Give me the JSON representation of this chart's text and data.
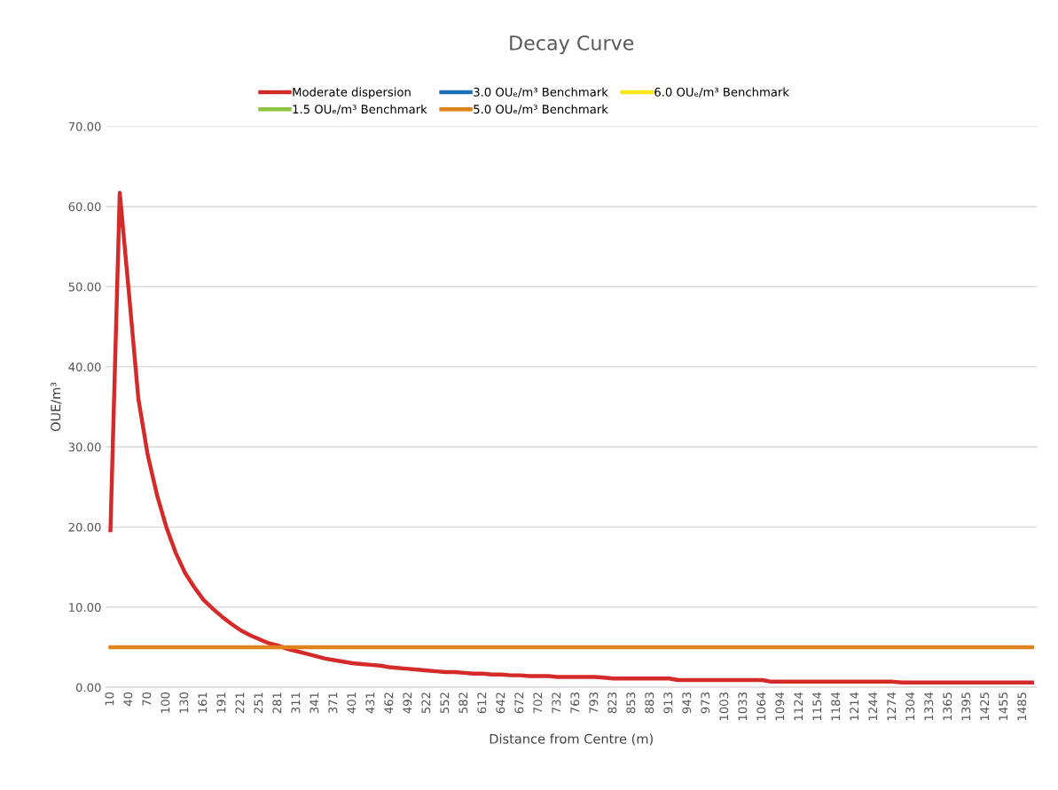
{
  "chart_data": {
    "type": "line",
    "title": "Decay Curve",
    "xlabel": "Distance from Centre (m)",
    "ylabel": "OUE/m³",
    "categories": [
      "10",
      null,
      "40",
      null,
      "70",
      null,
      "100",
      null,
      "130",
      null,
      "161",
      null,
      "191",
      null,
      "221",
      null,
      "251",
      null,
      "281",
      null,
      "311",
      null,
      "341",
      null,
      "371",
      null,
      "401",
      null,
      "431",
      null,
      "462",
      null,
      "492",
      null,
      "522",
      null,
      "552",
      null,
      "582",
      null,
      "612",
      null,
      "642",
      null,
      "672",
      null,
      "702",
      null,
      "732",
      null,
      "763",
      null,
      "793",
      null,
      "823",
      null,
      "853",
      null,
      "883",
      null,
      "913",
      null,
      "943",
      null,
      "973",
      null,
      "1003",
      null,
      "1033",
      null,
      "1064",
      null,
      "1094",
      null,
      "1124",
      null,
      "1154",
      null,
      "1184",
      null,
      "1214",
      null,
      "1244",
      null,
      "1274",
      null,
      "1304",
      null,
      "1334",
      null,
      "1365",
      null,
      "1395",
      null,
      "1425",
      null,
      "1455",
      null,
      "1485",
      null
    ],
    "series": [
      {
        "name": "Moderate dispersion",
        "color": "#d42a2a",
        "values": [
          19.6,
          61.7,
          49,
          36,
          29,
          24,
          20,
          16.8,
          14.3,
          12.5,
          10.9,
          9.8,
          8.8,
          7.9,
          7.1,
          6.5,
          6.0,
          5.5,
          5.2,
          4.8,
          4.5,
          4.2,
          3.9,
          3.6,
          3.4,
          3.2,
          3.0,
          2.9,
          2.8,
          2.7,
          2.5,
          2.4,
          2.3,
          2.2,
          2.1,
          2.0,
          1.9,
          1.9,
          1.8,
          1.7,
          1.7,
          1.6,
          1.6,
          1.5,
          1.5,
          1.4,
          1.4,
          1.4,
          1.3,
          1.3,
          1.3,
          1.3,
          1.3,
          1.2,
          1.1,
          1.1,
          1.1,
          1.1,
          1.1,
          1.1,
          1.1,
          0.9,
          0.9,
          0.9,
          0.9,
          0.9,
          0.9,
          0.9,
          0.9,
          0.9,
          0.9,
          0.7,
          0.7,
          0.7,
          0.7,
          0.7,
          0.7,
          0.7,
          0.7,
          0.7,
          0.7,
          0.7,
          0.7,
          0.7,
          0.7,
          0.6,
          0.6,
          0.6,
          0.6,
          0.6,
          0.6,
          0.6,
          0.6,
          0.6,
          0.6,
          0.6,
          0.6,
          0.6,
          0.6,
          0.6
        ]
      },
      {
        "name": "1.5 OUₑ/m³ Benchmark",
        "color": "#8cc63f",
        "values": [
          null,
          null,
          null,
          null,
          null,
          null,
          null,
          null,
          null,
          null,
          null,
          null,
          null,
          null,
          null,
          null,
          null,
          null,
          null,
          null,
          null,
          null,
          null,
          null,
          null,
          null,
          null,
          null,
          null,
          null,
          null,
          null,
          null,
          null,
          null,
          null,
          null,
          null,
          null,
          null,
          null,
          null,
          null,
          null,
          null,
          null,
          null,
          null,
          null,
          null,
          null,
          null,
          null,
          null,
          null,
          null,
          null,
          null,
          null,
          null,
          null,
          null,
          null,
          null,
          null,
          null,
          null,
          null,
          null,
          null,
          null,
          null,
          null,
          null,
          null,
          null,
          null,
          null,
          null,
          null,
          null,
          null,
          null,
          null,
          null,
          null,
          null,
          null,
          null,
          null,
          null,
          null,
          null,
          null,
          null,
          null,
          null,
          null,
          null,
          null
        ]
      },
      {
        "name": "3.0 OUₑ/m³ Benchmark",
        "color": "#1f6fb4",
        "values": [
          null,
          null,
          null,
          null,
          null,
          null,
          null,
          null,
          null,
          null,
          null,
          null,
          null,
          null,
          null,
          null,
          null,
          null,
          null,
          null,
          null,
          null,
          null,
          null,
          null,
          null,
          null,
          null,
          null,
          null,
          null,
          null,
          null,
          null,
          null,
          null,
          null,
          null,
          null,
          null,
          null,
          null,
          null,
          null,
          null,
          null,
          null,
          null,
          null,
          null,
          null,
          null,
          null,
          null,
          null,
          null,
          null,
          null,
          null,
          null,
          null,
          null,
          null,
          null,
          null,
          null,
          null,
          null,
          null,
          null,
          null,
          null,
          null,
          null,
          null,
          null,
          null,
          null,
          null,
          null,
          null,
          null,
          null,
          null,
          null,
          null,
          null,
          null,
          null,
          null,
          null,
          null,
          null,
          null,
          null,
          null,
          null,
          null,
          null,
          null
        ]
      },
      {
        "name": "5.0 OUₑ/m³ Benchmark",
        "color": "#e0821e",
        "values": [
          5,
          5,
          5,
          5,
          5,
          5,
          5,
          5,
          5,
          5,
          5,
          5,
          5,
          5,
          5,
          5,
          5,
          5,
          5,
          5,
          5,
          5,
          5,
          5,
          5,
          5,
          5,
          5,
          5,
          5,
          5,
          5,
          5,
          5,
          5,
          5,
          5,
          5,
          5,
          5,
          5,
          5,
          5,
          5,
          5,
          5,
          5,
          5,
          5,
          5,
          5,
          5,
          5,
          5,
          5,
          5,
          5,
          5,
          5,
          5,
          5,
          5,
          5,
          5,
          5,
          5,
          5,
          5,
          5,
          5,
          5,
          5,
          5,
          5,
          5,
          5,
          5,
          5,
          5,
          5,
          5,
          5,
          5,
          5,
          5,
          5,
          5,
          5,
          5,
          5,
          5,
          5,
          5,
          5,
          5,
          5,
          5,
          5,
          5,
          5
        ]
      },
      {
        "name": "6.0 OUₑ/m³ Benchmark",
        "color": "#f5e614",
        "values": [
          null,
          null,
          null,
          null,
          null,
          null,
          null,
          null,
          null,
          null,
          null,
          null,
          null,
          null,
          null,
          null,
          null,
          null,
          null,
          null,
          null,
          null,
          null,
          null,
          null,
          null,
          null,
          null,
          null,
          null,
          null,
          null,
          null,
          null,
          null,
          null,
          null,
          null,
          null,
          null,
          null,
          null,
          null,
          null,
          null,
          null,
          null,
          null,
          null,
          null,
          null,
          null,
          null,
          null,
          null,
          null,
          null,
          null,
          null,
          null,
          null,
          null,
          null,
          null,
          null,
          null,
          null,
          null,
          null,
          null,
          null,
          null,
          null,
          null,
          null,
          null,
          null,
          null,
          null,
          null,
          null,
          null,
          null,
          null,
          null,
          null,
          null,
          null,
          null,
          null,
          null,
          null,
          null,
          null,
          null,
          null,
          null,
          null,
          null,
          null
        ]
      }
    ],
    "ylim": [
      0,
      70
    ],
    "yticks": [
      {
        "value": 0,
        "label": "0.00"
      },
      {
        "value": 10,
        "label": "10.00"
      },
      {
        "value": 20,
        "label": "20.00"
      },
      {
        "value": 30,
        "label": "30.00"
      },
      {
        "value": 40,
        "label": "40.00"
      },
      {
        "value": 50,
        "label": "50.00"
      },
      {
        "value": 60,
        "label": "60.00"
      },
      {
        "value": 70,
        "label": "70.00"
      }
    ],
    "grid": "y",
    "legend": "top",
    "marker": "none",
    "line_style": "solid"
  }
}
